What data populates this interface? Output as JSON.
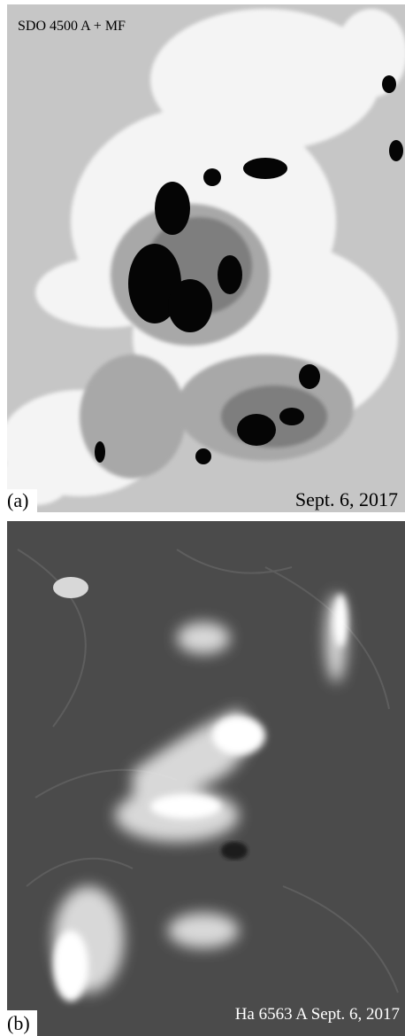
{
  "panels": [
    {
      "label": "(a)",
      "caption": "SDO 4500 A + MF",
      "date": "Sept. 6, 2017"
    },
    {
      "label": "(b)",
      "caption": "Ha 6563 A Sept. 6, 2017"
    }
  ]
}
